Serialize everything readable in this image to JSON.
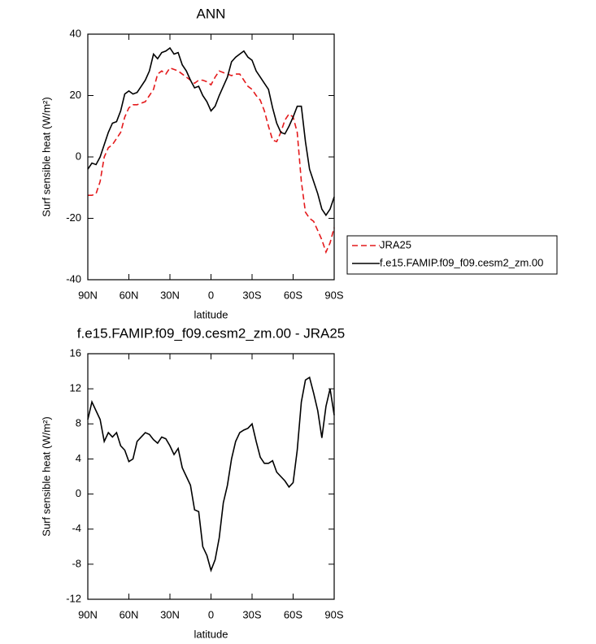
{
  "chart_data": [
    {
      "type": "line",
      "title": "ANN",
      "xlabel": "latitude",
      "ylabel": "Surf sensible heat (W/m²)",
      "x": [
        90,
        87,
        84,
        81,
        78,
        75,
        72,
        69,
        66,
        63,
        60,
        57,
        54,
        51,
        48,
        45,
        42,
        39,
        36,
        33,
        30,
        27,
        24,
        21,
        18,
        15,
        12,
        9,
        6,
        3,
        0,
        -3,
        -6,
        -9,
        -12,
        -15,
        -18,
        -21,
        -24,
        -27,
        -30,
        -33,
        -36,
        -39,
        -42,
        -45,
        -48,
        -51,
        -54,
        -57,
        -60,
        -63,
        -66,
        -69,
        -72,
        -75,
        -78,
        -81,
        -84,
        -87,
        -90
      ],
      "series": [
        {
          "name": "JRA25",
          "color": "#e41a1c",
          "dash": true,
          "values": [
            -12.5,
            -12.5,
            -12,
            -8,
            0,
            3,
            4,
            6,
            8,
            13,
            16,
            17,
            17,
            17.5,
            18,
            20,
            22,
            27,
            28,
            27,
            29,
            28.5,
            28,
            27,
            26,
            25,
            24,
            25,
            25,
            24.5,
            23.5,
            26,
            28,
            27.5,
            27,
            26.5,
            27,
            27,
            25,
            23,
            22,
            20,
            18.5,
            15,
            10,
            5.5,
            5,
            8,
            12,
            14,
            13,
            8,
            -8,
            -18,
            -20,
            -21,
            -24,
            -27,
            -31,
            -28,
            -23
          ]
        },
        {
          "name": "f.e15.FAMIP.f09_f09.cesm2_zm.00",
          "color": "#000000",
          "dash": false,
          "values": [
            -4,
            -2,
            -2.5,
            0,
            4,
            8,
            11,
            11.5,
            15,
            20.5,
            21.5,
            20.5,
            21,
            23,
            25,
            28,
            33.5,
            32,
            34,
            34.5,
            35.5,
            33.5,
            34,
            30,
            28,
            25,
            22.5,
            23,
            20,
            18,
            15,
            16.5,
            20,
            23,
            26,
            31,
            32.5,
            33.5,
            34.5,
            32.5,
            31.5,
            28,
            26,
            24,
            22,
            16,
            11,
            8,
            7.5,
            10,
            13,
            16.5,
            16.5,
            5,
            -4,
            -8,
            -12,
            -17,
            -19,
            -17,
            -13
          ]
        }
      ],
      "xlim": [
        90,
        -90
      ],
      "xticks": [
        {
          "value": 90,
          "label": "90N"
        },
        {
          "value": 60,
          "label": "60N"
        },
        {
          "value": 30,
          "label": "30N"
        },
        0,
        {
          "value": -30,
          "label": "30S"
        },
        {
          "value": -60,
          "label": "60S"
        },
        {
          "value": -90,
          "label": "90S"
        }
      ],
      "ylim": [
        -40,
        40
      ],
      "yticks": [
        -40,
        -20,
        0,
        20,
        40
      ],
      "legend": "right"
    },
    {
      "type": "line",
      "title": "f.e15.FAMIP.f09_f09.cesm2_zm.00 - JRA25",
      "xlabel": "latitude",
      "ylabel": "Surf sensible heat (W/m²)",
      "x": [
        90,
        87,
        84,
        81,
        78,
        75,
        72,
        69,
        66,
        63,
        60,
        57,
        54,
        51,
        48,
        45,
        42,
        39,
        36,
        33,
        30,
        27,
        24,
        21,
        18,
        15,
        12,
        9,
        6,
        3,
        0,
        -3,
        -6,
        -9,
        -12,
        -15,
        -18,
        -21,
        -24,
        -27,
        -30,
        -33,
        -36,
        -39,
        -42,
        -45,
        -48,
        -51,
        -54,
        -57,
        -60,
        -63,
        -66,
        -69,
        -72,
        -75,
        -78,
        -81,
        -84,
        -87,
        -90
      ],
      "values": [
        8.5,
        10.5,
        9.5,
        8.5,
        6,
        7,
        6.5,
        7,
        5.5,
        5,
        3.7,
        4,
        6,
        6.5,
        7,
        6.8,
        6.2,
        5.8,
        6.5,
        6.3,
        5.5,
        4.5,
        5.2,
        3,
        2,
        1,
        -1.8,
        -2,
        -6,
        -7,
        -8.7,
        -7.5,
        -5,
        -1,
        1,
        4,
        6,
        7,
        7.3,
        7.5,
        8,
        6,
        4.2,
        3.5,
        3.5,
        3.8,
        2.5,
        2,
        1.5,
        0.8,
        1.3,
        5,
        10.5,
        13,
        13.3,
        11.5,
        9.5,
        6.4,
        10,
        12,
        9
      ],
      "color": "#000000",
      "xlim": [
        90,
        -90
      ],
      "xticks": [
        {
          "value": 90,
          "label": "90N"
        },
        {
          "value": 60,
          "label": "60N"
        },
        {
          "value": 30,
          "label": "30N"
        },
        0,
        {
          "value": -30,
          "label": "30S"
        },
        {
          "value": -60,
          "label": "60S"
        },
        {
          "value": -90,
          "label": "90S"
        }
      ],
      "ylim": [
        -12,
        16
      ],
      "yticks": [
        -12,
        -8,
        -4,
        0,
        4,
        8,
        12,
        16
      ]
    }
  ]
}
